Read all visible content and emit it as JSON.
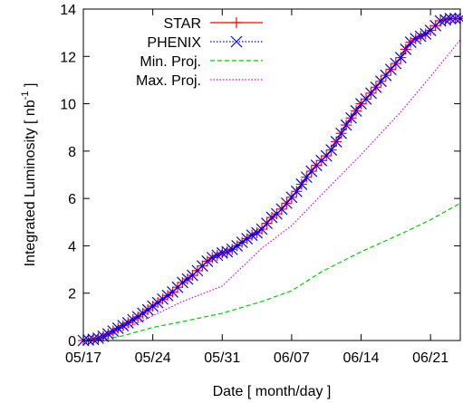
{
  "chart_data": {
    "type": "line",
    "title": "",
    "xlabel": "Date [ month/day ]",
    "ylabel": "Integrated Luminosity [ nb",
    "ylabel_sup": "-1",
    "ylabel_end": " ]",
    "xlim": [
      "05/17",
      "05/26+"
    ],
    "ylim": [
      0,
      14
    ],
    "x_ticks": [
      {
        "label": "05/17",
        "day": 0
      },
      {
        "label": "05/24",
        "day": 7
      },
      {
        "label": "05/31",
        "day": 14
      },
      {
        "label": "06/07",
        "day": 21
      },
      {
        "label": "06/14",
        "day": 28
      },
      {
        "label": "06/21",
        "day": 35
      }
    ],
    "x_range_days": [
      0,
      38
    ],
    "y_ticks": [
      0,
      2,
      4,
      6,
      8,
      10,
      12,
      14
    ],
    "grid": false,
    "legend_position": "top-left",
    "series": [
      {
        "name": "STAR",
        "color": "#ff0000",
        "marker": "plus",
        "style": "solid",
        "x": [
          0,
          0.5,
          1,
          1.5,
          2,
          2.5,
          3,
          3.5,
          4,
          4.5,
          5,
          5.5,
          6,
          6.5,
          7,
          7.5,
          8,
          8.5,
          9,
          9.5,
          10,
          10.5,
          11,
          11.5,
          12,
          12.5,
          13,
          13.5,
          14,
          14.5,
          15,
          15.5,
          16,
          16.5,
          17,
          17.5,
          18,
          18.5,
          19,
          19.5,
          20,
          20.5,
          21,
          21.5,
          22,
          22.5,
          23,
          23.5,
          24,
          24.5,
          25,
          25.5,
          26,
          26.5,
          27,
          27.5,
          28,
          28.5,
          29,
          29.5,
          30,
          30.5,
          31,
          31.5,
          32,
          32.5,
          33,
          33.5,
          34,
          34.5,
          35,
          35.5,
          36,
          36.5,
          37,
          37.5,
          38
        ],
        "y": [
          0,
          0.02,
          0.05,
          0.1,
          0.18,
          0.28,
          0.4,
          0.52,
          0.63,
          0.75,
          0.88,
          1.0,
          1.15,
          1.3,
          1.45,
          1.6,
          1.75,
          1.9,
          2.05,
          2.25,
          2.45,
          2.6,
          2.75,
          2.95,
          3.15,
          3.35,
          3.5,
          3.6,
          3.7,
          3.75,
          3.85,
          4.0,
          4.15,
          4.3,
          4.45,
          4.55,
          4.7,
          4.95,
          5.2,
          5.35,
          5.55,
          5.8,
          6.05,
          6.3,
          6.6,
          6.9,
          7.15,
          7.4,
          7.6,
          7.8,
          8.05,
          8.4,
          8.75,
          9.1,
          9.4,
          9.7,
          10.0,
          10.2,
          10.45,
          10.7,
          10.95,
          11.2,
          11.45,
          11.7,
          11.95,
          12.3,
          12.6,
          12.75,
          12.85,
          12.95,
          13.1,
          13.3,
          13.5,
          13.55,
          13.6,
          13.6,
          13.6
        ]
      },
      {
        "name": "PHENIX",
        "color": "#0000ff",
        "marker": "cross",
        "style": "dotted",
        "x": [
          0,
          0.5,
          1,
          1.5,
          2,
          2.5,
          3,
          3.5,
          4,
          4.5,
          5,
          5.5,
          6,
          6.5,
          7,
          7.5,
          8,
          8.5,
          9,
          9.5,
          10,
          10.5,
          11,
          11.5,
          12,
          12.5,
          13,
          13.5,
          14,
          14.5,
          15,
          15.5,
          16,
          16.5,
          17,
          17.5,
          18,
          18.5,
          19,
          19.5,
          20,
          20.5,
          21,
          21.5,
          22,
          22.5,
          23,
          23.5,
          24,
          24.5,
          25,
          25.5,
          26,
          26.5,
          27,
          27.5,
          28,
          28.5,
          29,
          29.5,
          30,
          30.5,
          31,
          31.5,
          32,
          32.5,
          33,
          33.5,
          34,
          34.5,
          35,
          35.5,
          36,
          36.5,
          37,
          37.5,
          38
        ],
        "y": [
          0,
          0.02,
          0.05,
          0.1,
          0.18,
          0.28,
          0.4,
          0.52,
          0.63,
          0.75,
          0.88,
          1.0,
          1.15,
          1.3,
          1.45,
          1.6,
          1.75,
          1.9,
          2.05,
          2.25,
          2.45,
          2.6,
          2.75,
          2.95,
          3.15,
          3.35,
          3.5,
          3.6,
          3.7,
          3.75,
          3.85,
          4.0,
          4.15,
          4.3,
          4.45,
          4.55,
          4.7,
          4.95,
          5.2,
          5.35,
          5.55,
          5.8,
          6.05,
          6.3,
          6.6,
          6.9,
          7.15,
          7.4,
          7.6,
          7.8,
          8.05,
          8.4,
          8.75,
          9.1,
          9.4,
          9.7,
          10.0,
          10.2,
          10.45,
          10.7,
          10.95,
          11.2,
          11.45,
          11.7,
          11.95,
          12.3,
          12.6,
          12.75,
          12.85,
          12.95,
          13.1,
          13.3,
          13.5,
          13.55,
          13.6,
          13.6,
          13.6
        ]
      },
      {
        "name": "Min. Proj.",
        "color": "#00cc00",
        "marker": "none",
        "style": "dashed",
        "x": [
          0,
          2,
          4,
          7,
          10,
          14,
          18,
          21,
          24,
          28,
          32,
          35,
          38
        ],
        "y": [
          0,
          0.05,
          0.2,
          0.55,
          0.8,
          1.15,
          1.65,
          2.1,
          2.9,
          3.75,
          4.5,
          5.1,
          5.8
        ]
      },
      {
        "name": "Max. Proj.",
        "color": "#dd00dd",
        "marker": "none",
        "style": "dotted",
        "x": [
          0,
          2,
          4,
          7,
          10,
          14,
          18,
          21,
          24,
          28,
          32,
          35,
          38
        ],
        "y": [
          0,
          0.1,
          0.45,
          1.05,
          1.65,
          2.3,
          3.9,
          4.85,
          6.15,
          7.85,
          9.65,
          11.15,
          12.7
        ]
      }
    ]
  }
}
